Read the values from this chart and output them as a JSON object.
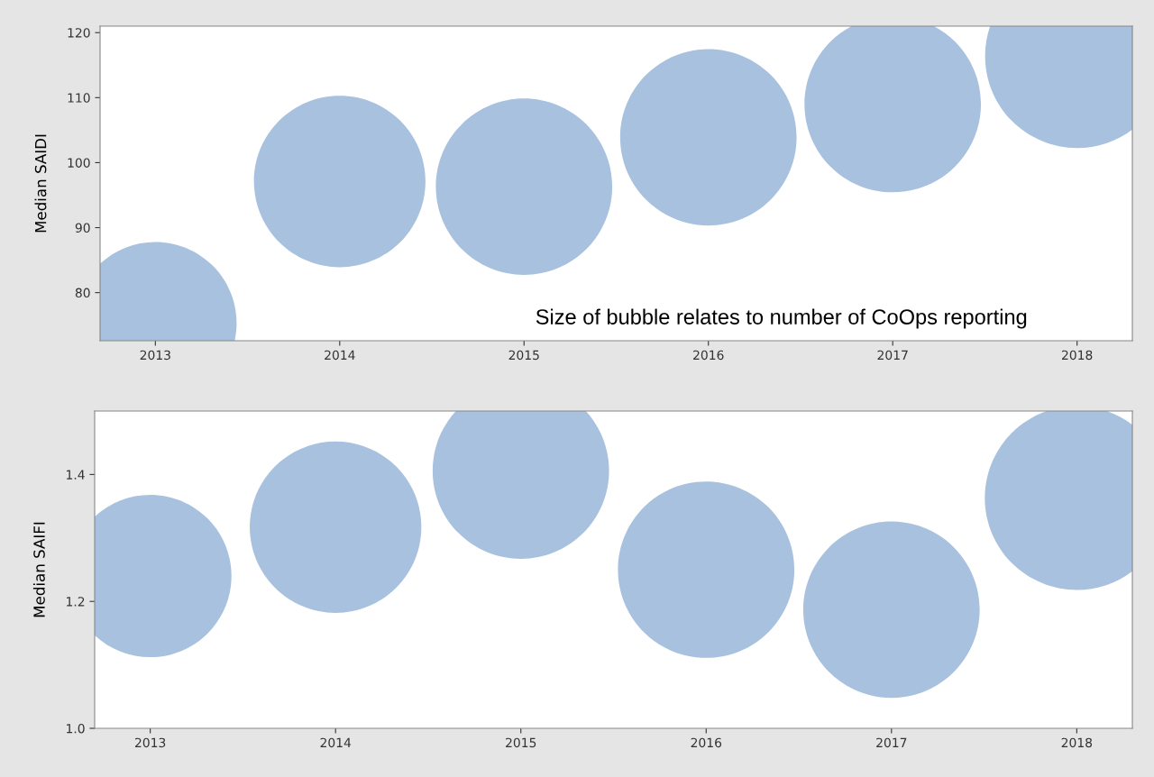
{
  "chart_data": [
    {
      "type": "bubble",
      "ylabel": "Median SAIDI",
      "x": [
        2013,
        2014,
        2015,
        2016,
        2017,
        2018
      ],
      "values": [
        75.3,
        97.1,
        96.3,
        103.9,
        109.0,
        116.4
      ],
      "sizes": [
        0.78,
        0.87,
        0.92,
        0.92,
        0.92,
        1
      ],
      "color": "#a7c1df",
      "xlim": [
        2012.7,
        2018.3
      ],
      "xticks": [
        2013,
        2014,
        2015,
        2016,
        2017,
        2018
      ],
      "ylim": [
        72.6,
        121
      ],
      "yticks": [
        80,
        90,
        100,
        110,
        120
      ],
      "grid": false,
      "legend": false,
      "annotations": [
        "Size of bubble relates to number of CoOps reporting"
      ]
    },
    {
      "type": "bubble",
      "ylabel": "Median SAIFI",
      "x": [
        2013,
        2014,
        2015,
        2016,
        2017,
        2018
      ],
      "values": [
        1.24,
        1.317,
        1.406,
        1.25,
        1.187,
        1.363
      ],
      "sizes": [
        0.78,
        0.87,
        0.92,
        0.92,
        0.92,
        1
      ],
      "color": "#a7c1df",
      "xlim": [
        2012.7,
        2018.3
      ],
      "xticks": [
        2013,
        2014,
        2015,
        2016,
        2017,
        2018
      ],
      "ylim": [
        1.0,
        1.5
      ],
      "yticks": [
        {
          "value": 1.0,
          "label": "1.0"
        },
        {
          "value": 1.2,
          "label": "1.2"
        },
        {
          "value": 1.4,
          "label": "1.4"
        }
      ],
      "grid": false,
      "legend": false
    }
  ]
}
